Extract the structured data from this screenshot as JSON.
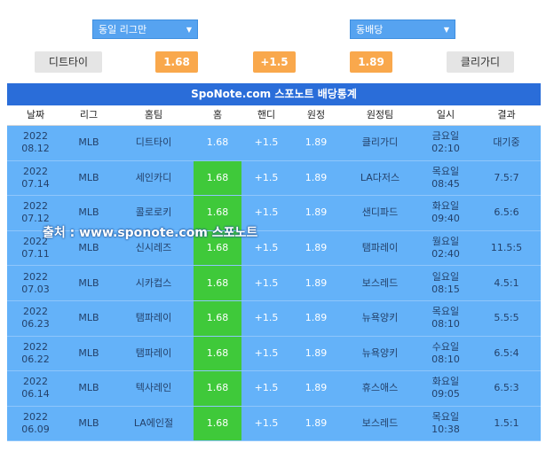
{
  "filters": {
    "league_select": "동일 리그만",
    "odds_select": "동배당"
  },
  "odds_bar": {
    "home_team": "디트타이",
    "home_odds": "1.68",
    "handicap": "+1.5",
    "away_odds": "1.89",
    "away_team": "클리가디"
  },
  "table": {
    "title": "SpoNote.com 스포노트 배당통계",
    "headers": [
      "날짜",
      "리그",
      "홈팀",
      "홈",
      "핸디",
      "원정",
      "원정팀",
      "일시",
      "결과"
    ],
    "rows": [
      {
        "year": "2022",
        "date": "08.12",
        "league": "MLB",
        "home_team": "디트타이",
        "home": "1.68",
        "handi": "+1.5",
        "away": "1.89",
        "away_team": "클리가디",
        "day": "금요일",
        "time": "02:10",
        "result": "대기중",
        "hl": false
      },
      {
        "year": "2022",
        "date": "07.14",
        "league": "MLB",
        "home_team": "세인카디",
        "home": "1.68",
        "handi": "+1.5",
        "away": "1.89",
        "away_team": "LA다저스",
        "day": "목요일",
        "time": "08:45",
        "result": "7.5:7",
        "hl": true
      },
      {
        "year": "2022",
        "date": "07.12",
        "league": "MLB",
        "home_team": "콜로로키",
        "home": "1.68",
        "handi": "+1.5",
        "away": "1.89",
        "away_team": "샌디파드",
        "day": "화요일",
        "time": "09:40",
        "result": "6.5:6",
        "hl": true
      },
      {
        "year": "2022",
        "date": "07.11",
        "league": "MLB",
        "home_team": "신시레즈",
        "home": "1.68",
        "handi": "+1.5",
        "away": "1.89",
        "away_team": "탬파레이",
        "day": "월요일",
        "time": "02:40",
        "result": "11.5:5",
        "hl": true
      },
      {
        "year": "2022",
        "date": "07.03",
        "league": "MLB",
        "home_team": "시카컵스",
        "home": "1.68",
        "handi": "+1.5",
        "away": "1.89",
        "away_team": "보스레드",
        "day": "일요일",
        "time": "08:15",
        "result": "4.5:1",
        "hl": true
      },
      {
        "year": "2022",
        "date": "06.23",
        "league": "MLB",
        "home_team": "탬파레이",
        "home": "1.68",
        "handi": "+1.5",
        "away": "1.89",
        "away_team": "뉴욕양키",
        "day": "목요일",
        "time": "08:10",
        "result": "5.5:5",
        "hl": true
      },
      {
        "year": "2022",
        "date": "06.22",
        "league": "MLB",
        "home_team": "탬파레이",
        "home": "1.68",
        "handi": "+1.5",
        "away": "1.89",
        "away_team": "뉴욕양키",
        "day": "수요일",
        "time": "08:10",
        "result": "6.5:4",
        "hl": true
      },
      {
        "year": "2022",
        "date": "06.14",
        "league": "MLB",
        "home_team": "텍사레인",
        "home": "1.68",
        "handi": "+1.5",
        "away": "1.89",
        "away_team": "휴스애스",
        "day": "화요일",
        "time": "09:05",
        "result": "6.5:3",
        "hl": true
      },
      {
        "year": "2022",
        "date": "06.09",
        "league": "MLB",
        "home_team": "LA에인절",
        "home": "1.68",
        "handi": "+1.5",
        "away": "1.89",
        "away_team": "보스레드",
        "day": "목요일",
        "time": "10:38",
        "result": "1.5:1",
        "hl": true
      }
    ]
  },
  "watermark": "출처 : www.sponote.com 스포노트"
}
